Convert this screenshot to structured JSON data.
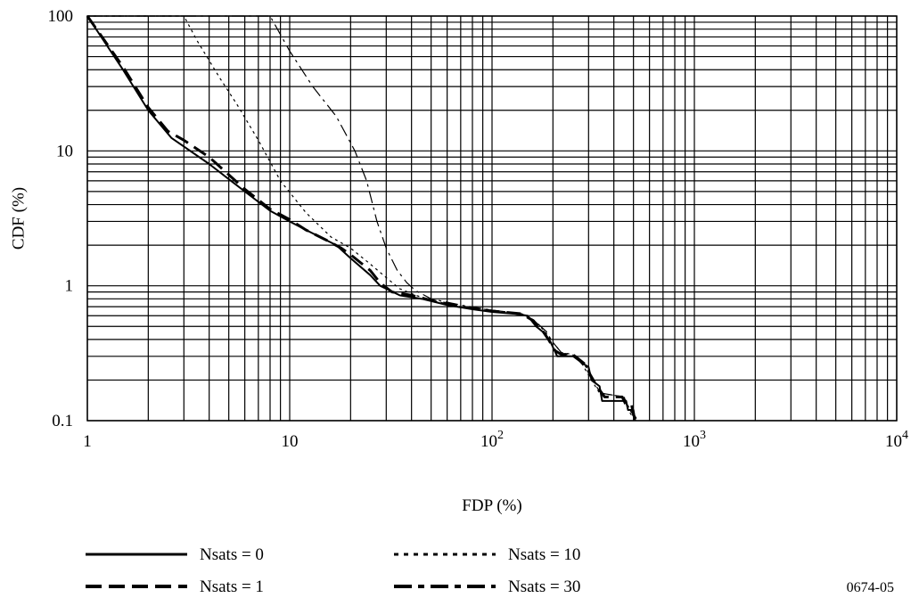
{
  "chart_data": {
    "type": "line",
    "title": "",
    "xlabel": "FDP (%)",
    "ylabel": "CDF (%)",
    "xscale": "log",
    "yscale": "log",
    "xlim": [
      1,
      10000
    ],
    "ylim": [
      0.1,
      100
    ],
    "grid": true,
    "legend_position": "bottom",
    "x_ticks": [
      {
        "value": 1,
        "base": "1",
        "exp": ""
      },
      {
        "value": 10,
        "base": "10",
        "exp": ""
      },
      {
        "value": 100,
        "base": "10",
        "exp": "2"
      },
      {
        "value": 1000,
        "base": "10",
        "exp": "3"
      },
      {
        "value": 10000,
        "base": "10",
        "exp": "4"
      }
    ],
    "y_ticks": [
      {
        "value": 100,
        "label": "100"
      },
      {
        "value": 10,
        "label": "10"
      },
      {
        "value": 1,
        "label": "1"
      },
      {
        "value": 0.1,
        "label": "0.1"
      }
    ],
    "x_grid_values": [
      1,
      2,
      3,
      4,
      5,
      6,
      7,
      8,
      9,
      10,
      20,
      30,
      40,
      50,
      60,
      70,
      80,
      90,
      100,
      200,
      300,
      400,
      500,
      600,
      700,
      800,
      900,
      1000,
      2000,
      3000,
      4000,
      5000,
      6000,
      7000,
      8000,
      9000,
      10000
    ],
    "y_grid_values": [
      0.1,
      0.2,
      0.3,
      0.4,
      0.5,
      0.6,
      0.7,
      0.8,
      0.9,
      1,
      2,
      3,
      4,
      5,
      6,
      7,
      8,
      9,
      10,
      20,
      30,
      40,
      50,
      60,
      70,
      80,
      90,
      100
    ],
    "series": [
      {
        "name": "Nsats = 0",
        "style": "solid",
        "stroke_width": 2,
        "points": [
          [
            1,
            100
          ],
          [
            1.5,
            40
          ],
          [
            2,
            20
          ],
          [
            2.6,
            12.5
          ],
          [
            4,
            8
          ],
          [
            6,
            5
          ],
          [
            8,
            3.6
          ],
          [
            10,
            3
          ],
          [
            12,
            2.6
          ],
          [
            17,
            2
          ],
          [
            20,
            1.6
          ],
          [
            25,
            1.2
          ],
          [
            28,
            1
          ],
          [
            35,
            0.85
          ],
          [
            45,
            0.8
          ],
          [
            60,
            0.72
          ],
          [
            80,
            0.67
          ],
          [
            100,
            0.64
          ],
          [
            130,
            0.62
          ],
          [
            150,
            0.6
          ],
          [
            165,
            0.5
          ],
          [
            180,
            0.45
          ],
          [
            195,
            0.38
          ],
          [
            210,
            0.3
          ],
          [
            260,
            0.3
          ],
          [
            275,
            0.27
          ],
          [
            300,
            0.25
          ],
          [
            310,
            0.2
          ],
          [
            340,
            0.18
          ],
          [
            350,
            0.14
          ],
          [
            460,
            0.14
          ],
          [
            470,
            0.12
          ],
          [
            500,
            0.12
          ],
          [
            510,
            0.1
          ]
        ]
      },
      {
        "name": "Nsats = 1",
        "style": "dashed",
        "stroke_width": 3,
        "points": [
          [
            1,
            100
          ],
          [
            1.5,
            42
          ],
          [
            2,
            21
          ],
          [
            2.5,
            14
          ],
          [
            3,
            12
          ],
          [
            4,
            9
          ],
          [
            6,
            5.2
          ],
          [
            8,
            3.7
          ],
          [
            10,
            3.1
          ],
          [
            12,
            2.6
          ],
          [
            15,
            2.2
          ],
          [
            18,
            1.9
          ],
          [
            20,
            1.7
          ],
          [
            25,
            1.3
          ],
          [
            28,
            1.05
          ],
          [
            32,
            0.9
          ],
          [
            40,
            0.85
          ],
          [
            50,
            0.78
          ],
          [
            70,
            0.7
          ],
          [
            100,
            0.65
          ],
          [
            140,
            0.62
          ],
          [
            160,
            0.55
          ],
          [
            175,
            0.48
          ],
          [
            190,
            0.4
          ],
          [
            205,
            0.33
          ],
          [
            220,
            0.31
          ],
          [
            250,
            0.31
          ],
          [
            265,
            0.29
          ],
          [
            290,
            0.26
          ],
          [
            305,
            0.22
          ],
          [
            330,
            0.18
          ],
          [
            360,
            0.15
          ],
          [
            440,
            0.15
          ],
          [
            460,
            0.13
          ],
          [
            490,
            0.13
          ],
          [
            500,
            0.11
          ],
          [
            520,
            0.1
          ]
        ]
      },
      {
        "name": "Nsats = 10",
        "style": "dotted",
        "stroke_width": 1.2,
        "points": [
          [
            1,
            100
          ],
          [
            3,
            100
          ],
          [
            3.5,
            65
          ],
          [
            4.5,
            35
          ],
          [
            5.5,
            22
          ],
          [
            7,
            12
          ],
          [
            9,
            6
          ],
          [
            12,
            3.5
          ],
          [
            16,
            2.3
          ],
          [
            20,
            1.9
          ],
          [
            25,
            1.45
          ],
          [
            30,
            1.15
          ],
          [
            35,
            0.95
          ],
          [
            42,
            0.85
          ],
          [
            50,
            0.78
          ],
          [
            70,
            0.7
          ],
          [
            100,
            0.66
          ],
          [
            140,
            0.62
          ],
          [
            160,
            0.56
          ],
          [
            180,
            0.47
          ],
          [
            200,
            0.38
          ],
          [
            220,
            0.32
          ],
          [
            250,
            0.31
          ],
          [
            280,
            0.26
          ],
          [
            310,
            0.2
          ],
          [
            340,
            0.16
          ],
          [
            450,
            0.15
          ],
          [
            480,
            0.12
          ],
          [
            520,
            0.1
          ]
        ]
      },
      {
        "name": "Nsats = 30",
        "style": "dashdot",
        "stroke_width": 1.2,
        "points": [
          [
            1,
            100
          ],
          [
            8,
            100
          ],
          [
            10,
            55
          ],
          [
            13,
            30
          ],
          [
            17,
            18
          ],
          [
            21,
            10
          ],
          [
            24,
            6
          ],
          [
            27,
            3
          ],
          [
            30,
            1.9
          ],
          [
            34,
            1.3
          ],
          [
            38,
            1.05
          ],
          [
            42,
            0.92
          ],
          [
            50,
            0.8
          ],
          [
            70,
            0.72
          ],
          [
            100,
            0.66
          ],
          [
            140,
            0.62
          ],
          [
            160,
            0.56
          ],
          [
            185,
            0.46
          ],
          [
            200,
            0.38
          ],
          [
            220,
            0.32
          ],
          [
            250,
            0.3
          ],
          [
            275,
            0.27
          ],
          [
            300,
            0.24
          ],
          [
            320,
            0.19
          ],
          [
            345,
            0.16
          ],
          [
            450,
            0.15
          ],
          [
            470,
            0.12
          ],
          [
            510,
            0.1
          ]
        ]
      }
    ]
  },
  "figure_code": "0674-05"
}
